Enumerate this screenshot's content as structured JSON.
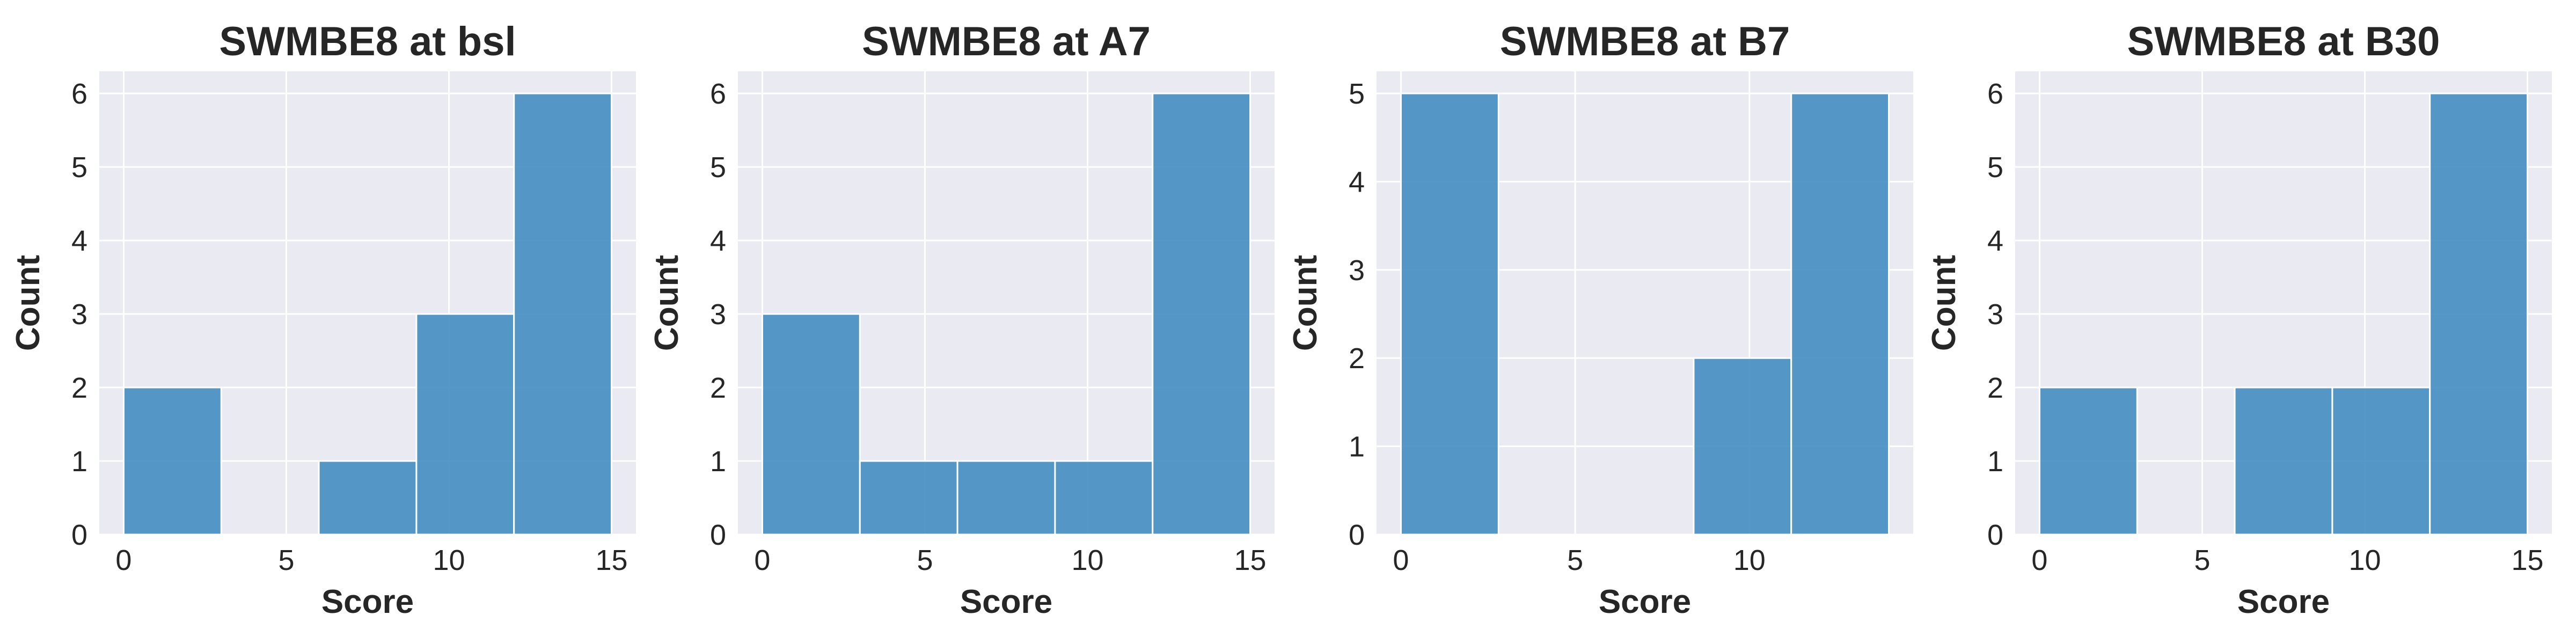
{
  "chart_data": [
    {
      "type": "bar",
      "title": "SWMBE8 at bsl",
      "xlabel": "Score",
      "ylabel": "Count",
      "bins": [
        [
          0,
          3
        ],
        [
          3,
          6
        ],
        [
          6,
          9
        ],
        [
          9,
          12
        ],
        [
          12,
          15
        ]
      ],
      "values": [
        2,
        0,
        1,
        3,
        6
      ],
      "xlim": [
        -0.75,
        15.75
      ],
      "ylim": [
        0,
        6.3
      ],
      "xticks": [
        0,
        5,
        10,
        15
      ],
      "yticks": [
        0,
        1,
        2,
        3,
        4,
        5,
        6
      ],
      "grid": true
    },
    {
      "type": "bar",
      "title": "SWMBE8 at A7",
      "xlabel": "Score",
      "ylabel": "Count",
      "bins": [
        [
          0,
          3
        ],
        [
          3,
          6
        ],
        [
          6,
          9
        ],
        [
          9,
          12
        ],
        [
          12,
          15
        ]
      ],
      "values": [
        3,
        1,
        1,
        1,
        6
      ],
      "xlim": [
        -0.75,
        15.75
      ],
      "ylim": [
        0,
        6.3
      ],
      "xticks": [
        0,
        5,
        10,
        15
      ],
      "yticks": [
        0,
        1,
        2,
        3,
        4,
        5,
        6
      ],
      "grid": true
    },
    {
      "type": "bar",
      "title": "SWMBE8 at B7",
      "xlabel": "Score",
      "ylabel": "Count",
      "bins": [
        [
          0,
          2.8
        ],
        [
          2.8,
          5.6
        ],
        [
          5.6,
          8.4
        ],
        [
          8.4,
          11.2
        ],
        [
          11.2,
          14
        ]
      ],
      "values": [
        5,
        0,
        0,
        2,
        5
      ],
      "xlim": [
        -0.7,
        14.7
      ],
      "ylim": [
        0,
        5.25
      ],
      "xticks": [
        0,
        5,
        10
      ],
      "yticks": [
        0,
        1,
        2,
        3,
        4,
        5
      ],
      "grid": true
    },
    {
      "type": "bar",
      "title": "SWMBE8 at B30",
      "xlabel": "Score",
      "ylabel": "Count",
      "bins": [
        [
          0,
          3
        ],
        [
          3,
          6
        ],
        [
          6,
          9
        ],
        [
          9,
          12
        ],
        [
          12,
          15
        ]
      ],
      "values": [
        2,
        0,
        2,
        2,
        6
      ],
      "xlim": [
        -0.75,
        15.75
      ],
      "ylim": [
        0,
        6.3
      ],
      "xticks": [
        0,
        5,
        10,
        15
      ],
      "yticks": [
        0,
        1,
        2,
        3,
        4,
        5,
        6
      ],
      "grid": true
    }
  ]
}
